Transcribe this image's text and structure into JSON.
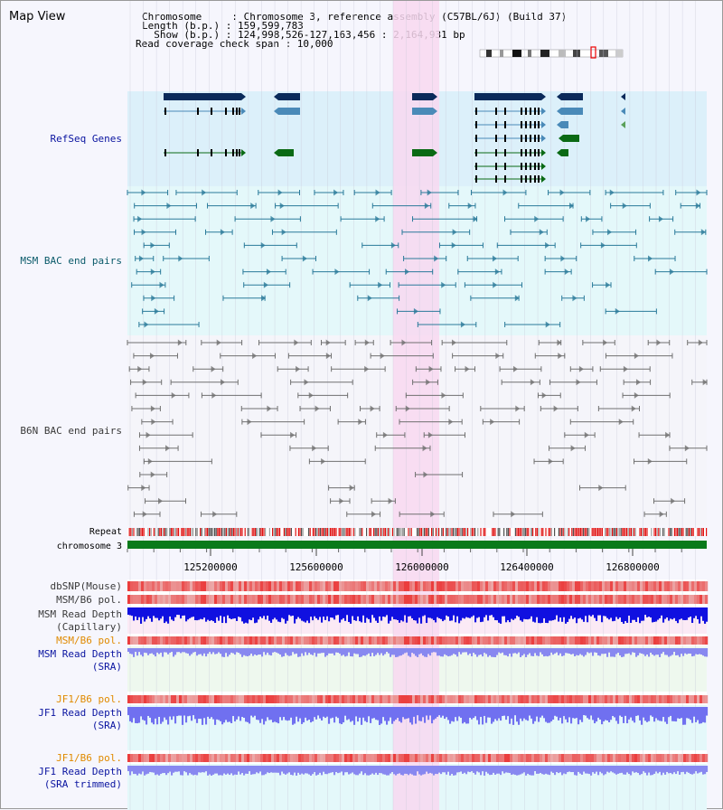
{
  "view_title": "Map View",
  "info": {
    "chromosome_label": "Chromosome     : Chromosome 3, reference assembly (C57BL/6J) (Build 37)",
    "length_label": "Length (b.p.) : 159,599,783",
    "show_label": "  Show (b.p.) : 124,998,526-127,163,456 : 2,164,931 bp",
    "coverage_label": "Read coverage check span : 10,000"
  },
  "tracks": {
    "refseq": "RefSeq Genes",
    "msm_bac": "MSM BAC end pairs",
    "b6n_bac": "B6N BAC end pairs",
    "repeat": "Repeat",
    "chromosome": "chromosome 3",
    "dbsnp": "dbSNP(Mouse)",
    "msm_b6_pol1": "MSM/B6 pol.",
    "msm_depth_cap": "MSM Read Depth\n(Capillary)",
    "msm_b6_pol2": "MSM/B6 pol.",
    "msm_depth_sra": "MSM Read Depth\n(SRA)",
    "jf1_b6_pol1": "JF1/B6 pol.",
    "jf1_depth_sra": "JF1 Read Depth\n(SRA)",
    "jf1_b6_pol2": "JF1/B6 pol.",
    "jf1_depth_trim": "JF1 Read Depth\n(SRA trimmed)"
  },
  "axis": {
    "ticks": [
      "125200000",
      "125600000",
      "126000000",
      "126400000",
      "126800000"
    ]
  },
  "colors": {
    "refseq_bg": "#dcf0fa",
    "msm_bg": "#e4f8fa",
    "b6n_bg": "#f5f5fa",
    "highlight": "#f8d8f0",
    "gene_dark": "#0a2a5a",
    "gene_light": "#4a8ab8",
    "gene_green": "#0a6a14",
    "chrom_green": "#0a7a1a",
    "msm_line": "#2a7a9a",
    "b6n_line": "#707070",
    "label_blue": "#0a14a0",
    "label_teal": "#0a5a6a",
    "label_dark": "#3a3a3a",
    "label_orange": "#e08a00"
  }
}
